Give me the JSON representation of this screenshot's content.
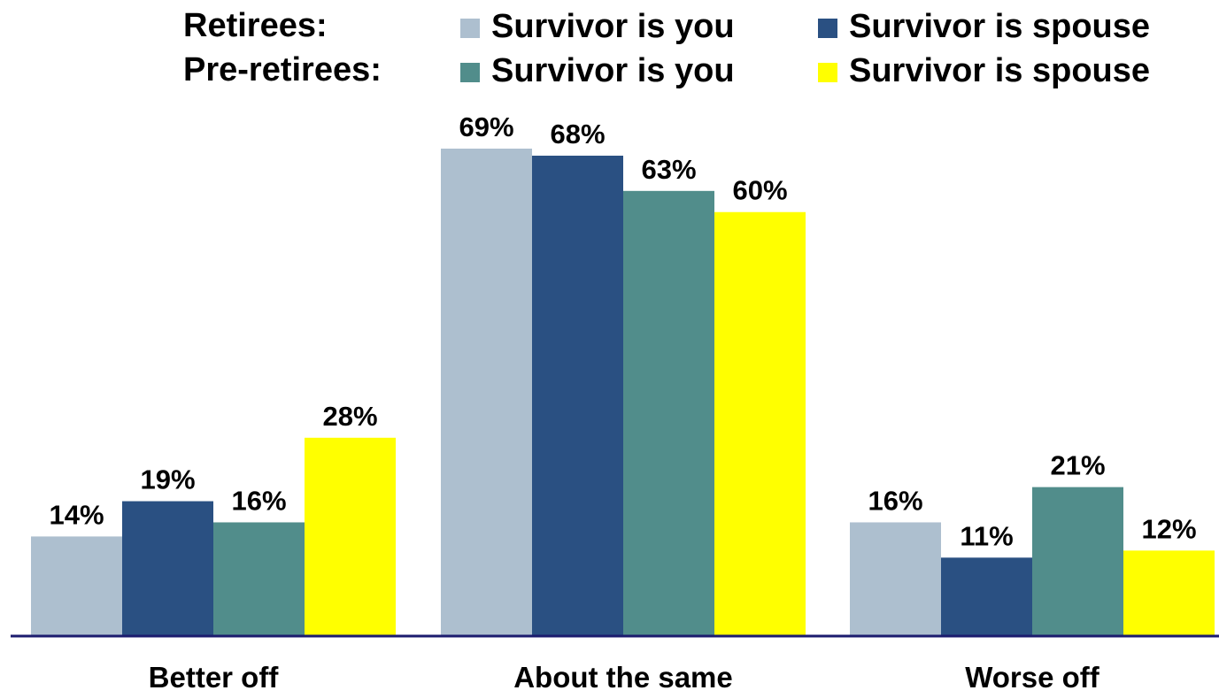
{
  "legend": {
    "groups": [
      {
        "label": "Retirees:",
        "entries": [
          {
            "name": "Survivor is you",
            "color": "#adbfcf"
          },
          {
            "name": "Survivor is spouse",
            "color": "#2a5082"
          }
        ]
      },
      {
        "label": "Pre-retirees:",
        "entries": [
          {
            "name": "Survivor is you",
            "color": "#518d8b"
          },
          {
            "name": "Survivor is spouse",
            "color": "#ffff00"
          }
        ]
      }
    ]
  },
  "chart_data": {
    "type": "bar",
    "categories": [
      "Better off",
      "About the same",
      "Worse off"
    ],
    "series": [
      {
        "name": "Survivor is you",
        "color": "#adbfcf",
        "values": [
          14,
          69,
          16
        ],
        "labels": [
          "14%",
          "69%",
          "16%"
        ]
      },
      {
        "name": "Survivor is spouse",
        "color": "#2a5082",
        "values": [
          19,
          68,
          11
        ],
        "labels": [
          "19%",
          "68%",
          "11%"
        ]
      },
      {
        "name": "Survivor is you",
        "color": "#518d8b",
        "values": [
          16,
          63,
          21
        ],
        "labels": [
          "16%",
          "63%",
          "21%"
        ]
      },
      {
        "name": "Survivor is spouse",
        "color": "#ffff00",
        "values": [
          28,
          60,
          12
        ],
        "labels": [
          "28%",
          "60%",
          "12%"
        ]
      }
    ],
    "ylim": [
      0,
      69
    ],
    "grid": false,
    "legend_position": "top",
    "axis_color": "#1b1b6e"
  }
}
